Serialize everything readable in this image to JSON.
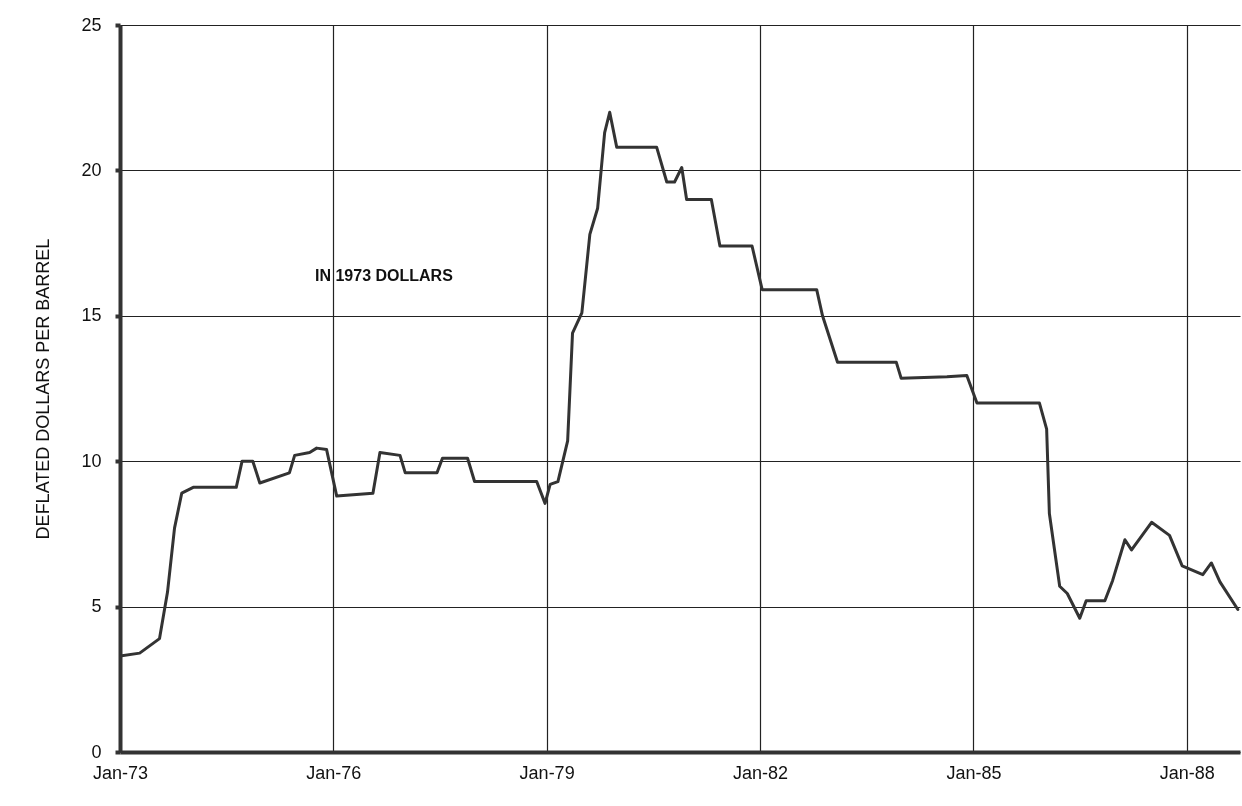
{
  "chart_data": {
    "type": "line",
    "ylabel": "DEFLATED DOLLARS PER BARREL",
    "annotations": [
      "IN 1973 DOLLARS"
    ],
    "x": [
      "1973-01-01",
      "1973-04-12",
      "1973-07-23",
      "1973-09-02",
      "1973-10-08",
      "1973-11-14",
      "1974-01-12",
      "1974-08-21",
      "1974-09-20",
      "1974-11-14",
      "1974-12-20",
      "1975-05-21",
      "1975-06-17",
      "1975-09-02",
      "1975-10-08",
      "1975-11-28",
      "1976-01-19",
      "1976-07-23",
      "1976-08-28",
      "1976-12-09",
      "1977-01-05",
      "1977-06-17",
      "1977-07-15",
      "1977-11-21",
      "1977-12-27",
      "1978-11-11",
      "1978-12-24",
      "1979-01-19",
      "1979-02-28",
      "1979-04-19",
      "1979-05-14",
      "1979-07-01",
      "1979-08-11",
      "1979-09-20",
      "1979-10-26",
      "1979-11-21",
      "1979-12-27",
      "1980-07-19",
      "1980-09-09",
      "1980-10-19",
      "1980-11-25",
      "1980-12-20",
      "1981-04-26",
      "1981-06-09",
      "1981-11-21",
      "1982-01-12",
      "1982-10-19",
      "1982-11-18",
      "1983-02-03",
      "1983-12-02",
      "1983-12-27",
      "1984-08-18",
      "1984-11-28",
      "1985-01-19",
      "1985-12-06",
      "1986-01-12",
      "1986-01-26",
      "1986-03-20",
      "1986-04-28",
      "1986-07-01",
      "1986-08-03",
      "1986-11-07",
      "1986-12-17",
      "1987-02-18",
      "1987-03-24",
      "1987-07-05",
      "1987-10-05",
      "1987-12-09",
      "1988-03-24",
      "1988-05-07",
      "1988-06-20",
      "1988-09-20"
    ],
    "series": [
      {
        "color": "#333333",
        "values": [
          3.3,
          3.4,
          3.9,
          5.5,
          7.7,
          8.9,
          9.1,
          9.1,
          10.0,
          10.0,
          9.25,
          9.6,
          10.2,
          10.3,
          10.45,
          10.4,
          8.8,
          8.9,
          10.3,
          10.2,
          9.6,
          9.6,
          10.1,
          10.1,
          9.3,
          9.3,
          8.55,
          9.2,
          9.3,
          10.7,
          14.4,
          15.1,
          17.8,
          18.7,
          21.3,
          22.0,
          20.8,
          20.8,
          19.6,
          19.6,
          20.1,
          19.0,
          19.0,
          17.4,
          17.4,
          15.9,
          15.9,
          15.0,
          13.4,
          13.4,
          12.85,
          12.9,
          12.95,
          12.0,
          12.0,
          11.1,
          8.2,
          5.7,
          5.45,
          4.6,
          5.2,
          5.2,
          5.9,
          7.3,
          6.95,
          7.9,
          7.45,
          6.4,
          6.1,
          6.5,
          5.85,
          4.9
        ]
      }
    ],
    "xlim": [
      "1973-01-01",
      "1988-10-01"
    ],
    "xticks": [
      {
        "value": "1973-01",
        "label": "Jan-73"
      },
      {
        "value": "1976-01",
        "label": "Jan-76"
      },
      {
        "value": "1979-01",
        "label": "Jan-79"
      },
      {
        "value": "1982-01",
        "label": "Jan-82"
      },
      {
        "value": "1985-01",
        "label": "Jan-85"
      },
      {
        "value": "1988-01",
        "label": "Jan-88"
      }
    ],
    "ylim": [
      0,
      25
    ],
    "yticks": [
      0,
      5,
      10,
      15,
      20,
      25
    ],
    "grid": true,
    "marker": "none",
    "line_style": "solid"
  }
}
